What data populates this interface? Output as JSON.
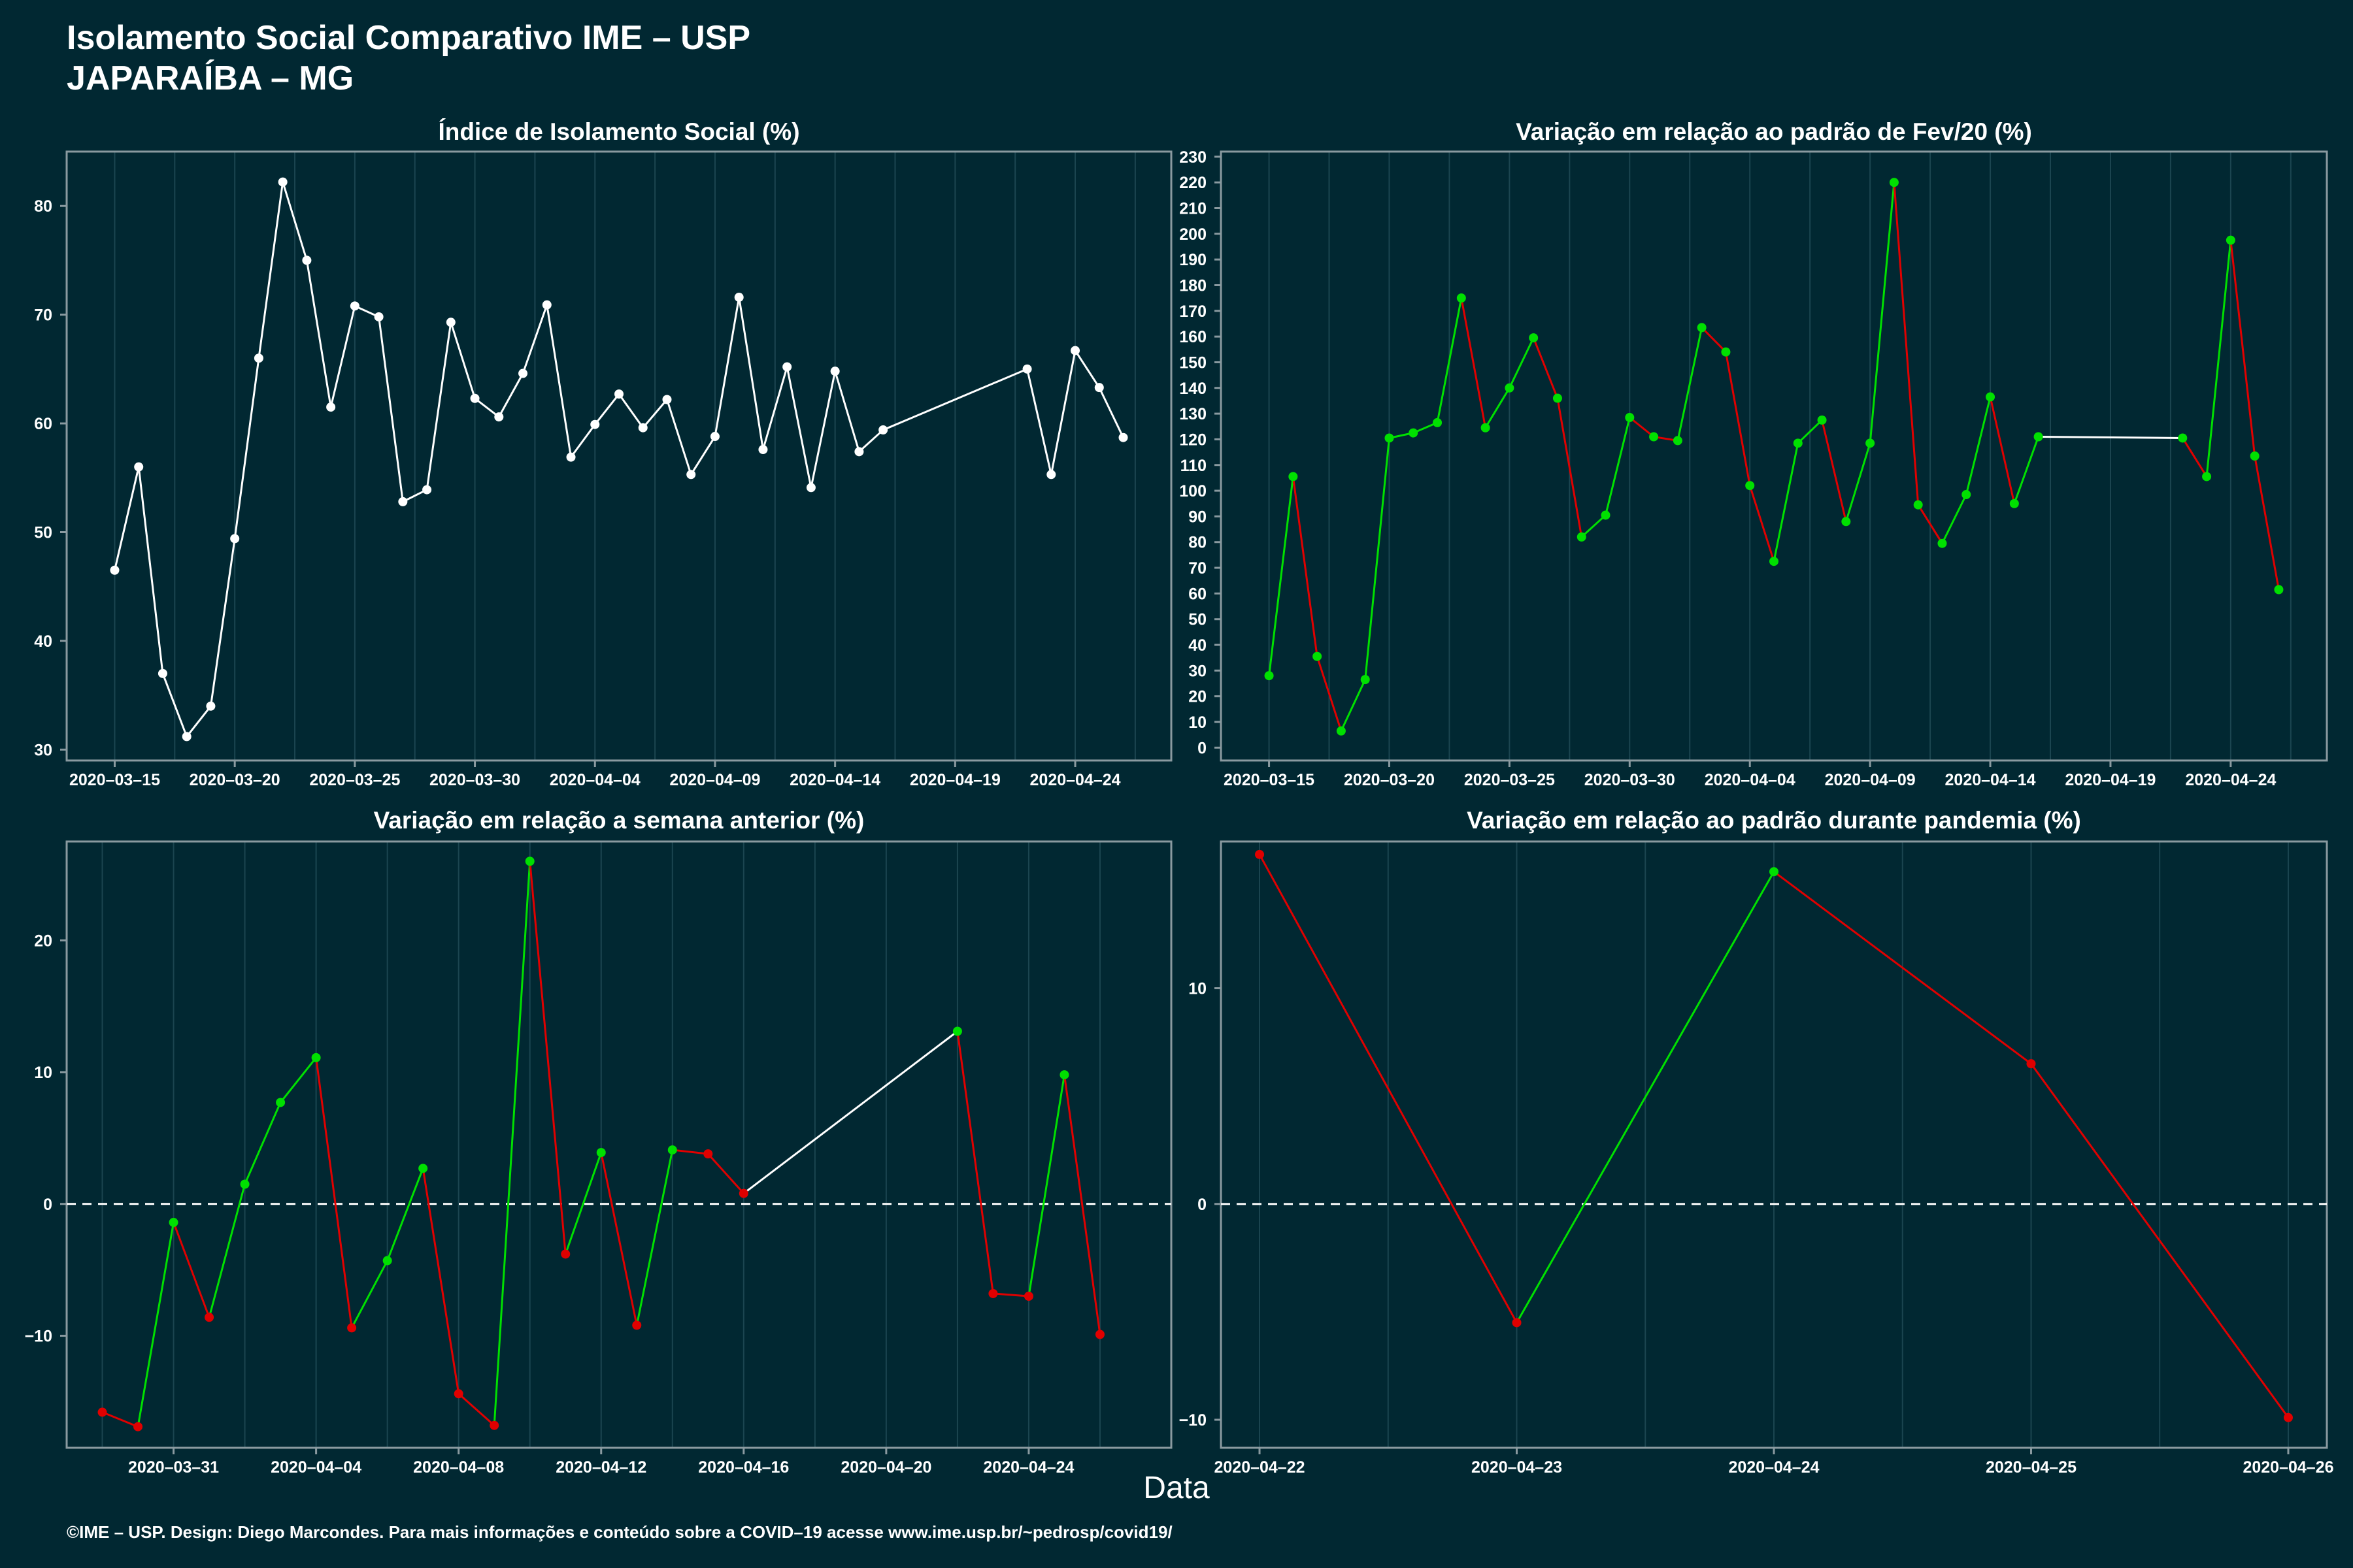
{
  "header": {
    "title": "Isolamento Social Comparativo IME – USP",
    "subtitle": "JAPARAÍBA – MG"
  },
  "xlabel": "Data",
  "footer": "©IME – USP. Design: Diego Marcondes. Para mais informações e conteúdo sobre a COVID–19 acesse www.ime.usp.br/~pedrosp/covid19/",
  "colors": {
    "background": "#012832",
    "white": "#ffffff",
    "green": "#00e000",
    "red": "#e00000",
    "frame": "#8a9aa0",
    "grid": "#1b4550"
  },
  "chart_data": [
    {
      "type": "line",
      "title": "Índice de Isolamento Social (%)",
      "color": "white",
      "ylim": [
        29,
        85
      ],
      "yticks": [
        30,
        40,
        50,
        60,
        70,
        80
      ],
      "xlim": [
        "2020-03-13",
        "2020-04-28"
      ],
      "xticks": [
        "2020-03-15",
        "2020-03-20",
        "2020-03-25",
        "2020-03-30",
        "2020-04-04",
        "2020-04-09",
        "2020-04-14",
        "2020-04-19",
        "2020-04-24"
      ],
      "x": [
        "2020-03-15",
        "2020-03-16",
        "2020-03-17",
        "2020-03-18",
        "2020-03-19",
        "2020-03-20",
        "2020-03-21",
        "2020-03-22",
        "2020-03-23",
        "2020-03-24",
        "2020-03-25",
        "2020-03-26",
        "2020-03-27",
        "2020-03-28",
        "2020-03-29",
        "2020-03-30",
        "2020-03-31",
        "2020-04-01",
        "2020-04-02",
        "2020-04-03",
        "2020-04-04",
        "2020-04-05",
        "2020-04-06",
        "2020-04-07",
        "2020-04-08",
        "2020-04-09",
        "2020-04-10",
        "2020-04-11",
        "2020-04-12",
        "2020-04-13",
        "2020-04-14",
        "2020-04-15",
        "2020-04-16",
        "2020-04-22",
        "2020-04-23",
        "2020-04-24",
        "2020-04-25",
        "2020-04-26"
      ],
      "y": [
        46.5,
        56,
        37,
        31.2,
        34,
        49.4,
        66,
        82.2,
        75,
        61.5,
        70.8,
        69.8,
        52.8,
        53.9,
        69.3,
        62.3,
        60.6,
        64.6,
        70.9,
        56.9,
        59.9,
        62.7,
        59.6,
        62.2,
        55.3,
        58.8,
        71.6,
        57.6,
        65.2,
        54.1,
        64.8,
        57.4,
        59.4,
        65,
        55.3,
        66.7,
        63.3,
        58.7
      ]
    },
    {
      "type": "line",
      "title": "Variação em relação ao padrão de Fev/20 (%)",
      "ylim": [
        -5,
        232
      ],
      "yticks": [
        0,
        10,
        20,
        30,
        40,
        50,
        60,
        70,
        80,
        90,
        100,
        110,
        120,
        130,
        140,
        150,
        160,
        170,
        180,
        190,
        200,
        210,
        220,
        230
      ],
      "xlim": [
        "2020-03-13",
        "2020-04-28"
      ],
      "xticks": [
        "2020-03-15",
        "2020-03-20",
        "2020-03-25",
        "2020-03-30",
        "2020-04-04",
        "2020-04-09",
        "2020-04-14",
        "2020-04-19",
        "2020-04-24"
      ],
      "x": [
        "2020-03-15",
        "2020-03-16",
        "2020-03-17",
        "2020-03-18",
        "2020-03-19",
        "2020-03-20",
        "2020-03-21",
        "2020-03-22",
        "2020-03-23",
        "2020-03-24",
        "2020-03-25",
        "2020-03-26",
        "2020-03-27",
        "2020-03-28",
        "2020-03-29",
        "2020-03-30",
        "2020-03-31",
        "2020-04-01",
        "2020-04-02",
        "2020-04-03",
        "2020-04-04",
        "2020-04-05",
        "2020-04-06",
        "2020-04-07",
        "2020-04-08",
        "2020-04-09",
        "2020-04-10",
        "2020-04-11",
        "2020-04-12",
        "2020-04-13",
        "2020-04-14",
        "2020-04-15",
        "2020-04-16",
        "2020-04-22",
        "2020-04-23",
        "2020-04-24",
        "2020-04-25",
        "2020-04-26"
      ],
      "y": [
        28,
        105.5,
        35.5,
        6.5,
        26.5,
        120.5,
        122.5,
        126.5,
        175,
        124.5,
        140,
        159.5,
        136,
        82,
        90.5,
        128.5,
        121,
        119.5,
        163.5,
        154,
        102,
        72.5,
        118.5,
        127.5,
        88,
        118.5,
        220,
        94.5,
        79.5,
        98.5,
        136.5,
        95,
        121,
        120.5,
        105.5,
        197.5,
        113.5,
        61.5
      ]
    },
    {
      "type": "line",
      "title": "Variação em relação a semana anterior (%)",
      "ylim": [
        -18.5,
        27.5
      ],
      "yticks": [
        -10,
        0,
        10,
        20
      ],
      "xlim": [
        "2020-03-28",
        "2020-04-28"
      ],
      "xticks": [
        "2020-03-31",
        "2020-04-04",
        "2020-04-08",
        "2020-04-12",
        "2020-04-16",
        "2020-04-20",
        "2020-04-24"
      ],
      "reference_line": 0,
      "x": [
        "2020-03-29",
        "2020-03-30",
        "2020-03-31",
        "2020-04-01",
        "2020-04-02",
        "2020-04-03",
        "2020-04-04",
        "2020-04-05",
        "2020-04-06",
        "2020-04-07",
        "2020-04-08",
        "2020-04-09",
        "2020-04-10",
        "2020-04-11",
        "2020-04-12",
        "2020-04-13",
        "2020-04-14",
        "2020-04-15",
        "2020-04-16",
        "2020-04-22",
        "2020-04-23",
        "2020-04-24",
        "2020-04-25",
        "2020-04-26"
      ],
      "y": [
        -15.8,
        -16.9,
        -1.4,
        -8.6,
        1.5,
        7.7,
        11.1,
        -9.4,
        -4.3,
        2.7,
        -14.4,
        -16.8,
        26,
        -3.8,
        3.9,
        -9.2,
        4.1,
        3.8,
        0.8,
        13.1,
        -6.8,
        -7,
        9.8,
        -9.9
      ]
    },
    {
      "type": "line",
      "title": "Variação em relação ao padrão durante pandemia (%)",
      "ylim": [
        -11.3,
        16.8
      ],
      "yticks": [
        -10,
        0,
        10
      ],
      "xlim": [
        "2020-04-21.85",
        "2020-04-26.15"
      ],
      "xticks": [
        "2020-04-22",
        "2020-04-23",
        "2020-04-24",
        "2020-04-25",
        "2020-04-26"
      ],
      "reference_line": 0,
      "x": [
        "2020-04-22",
        "2020-04-23",
        "2020-04-24",
        "2020-04-25",
        "2020-04-26"
      ],
      "y": [
        16.2,
        -5.5,
        15.4,
        6.5,
        -9.9
      ]
    }
  ]
}
